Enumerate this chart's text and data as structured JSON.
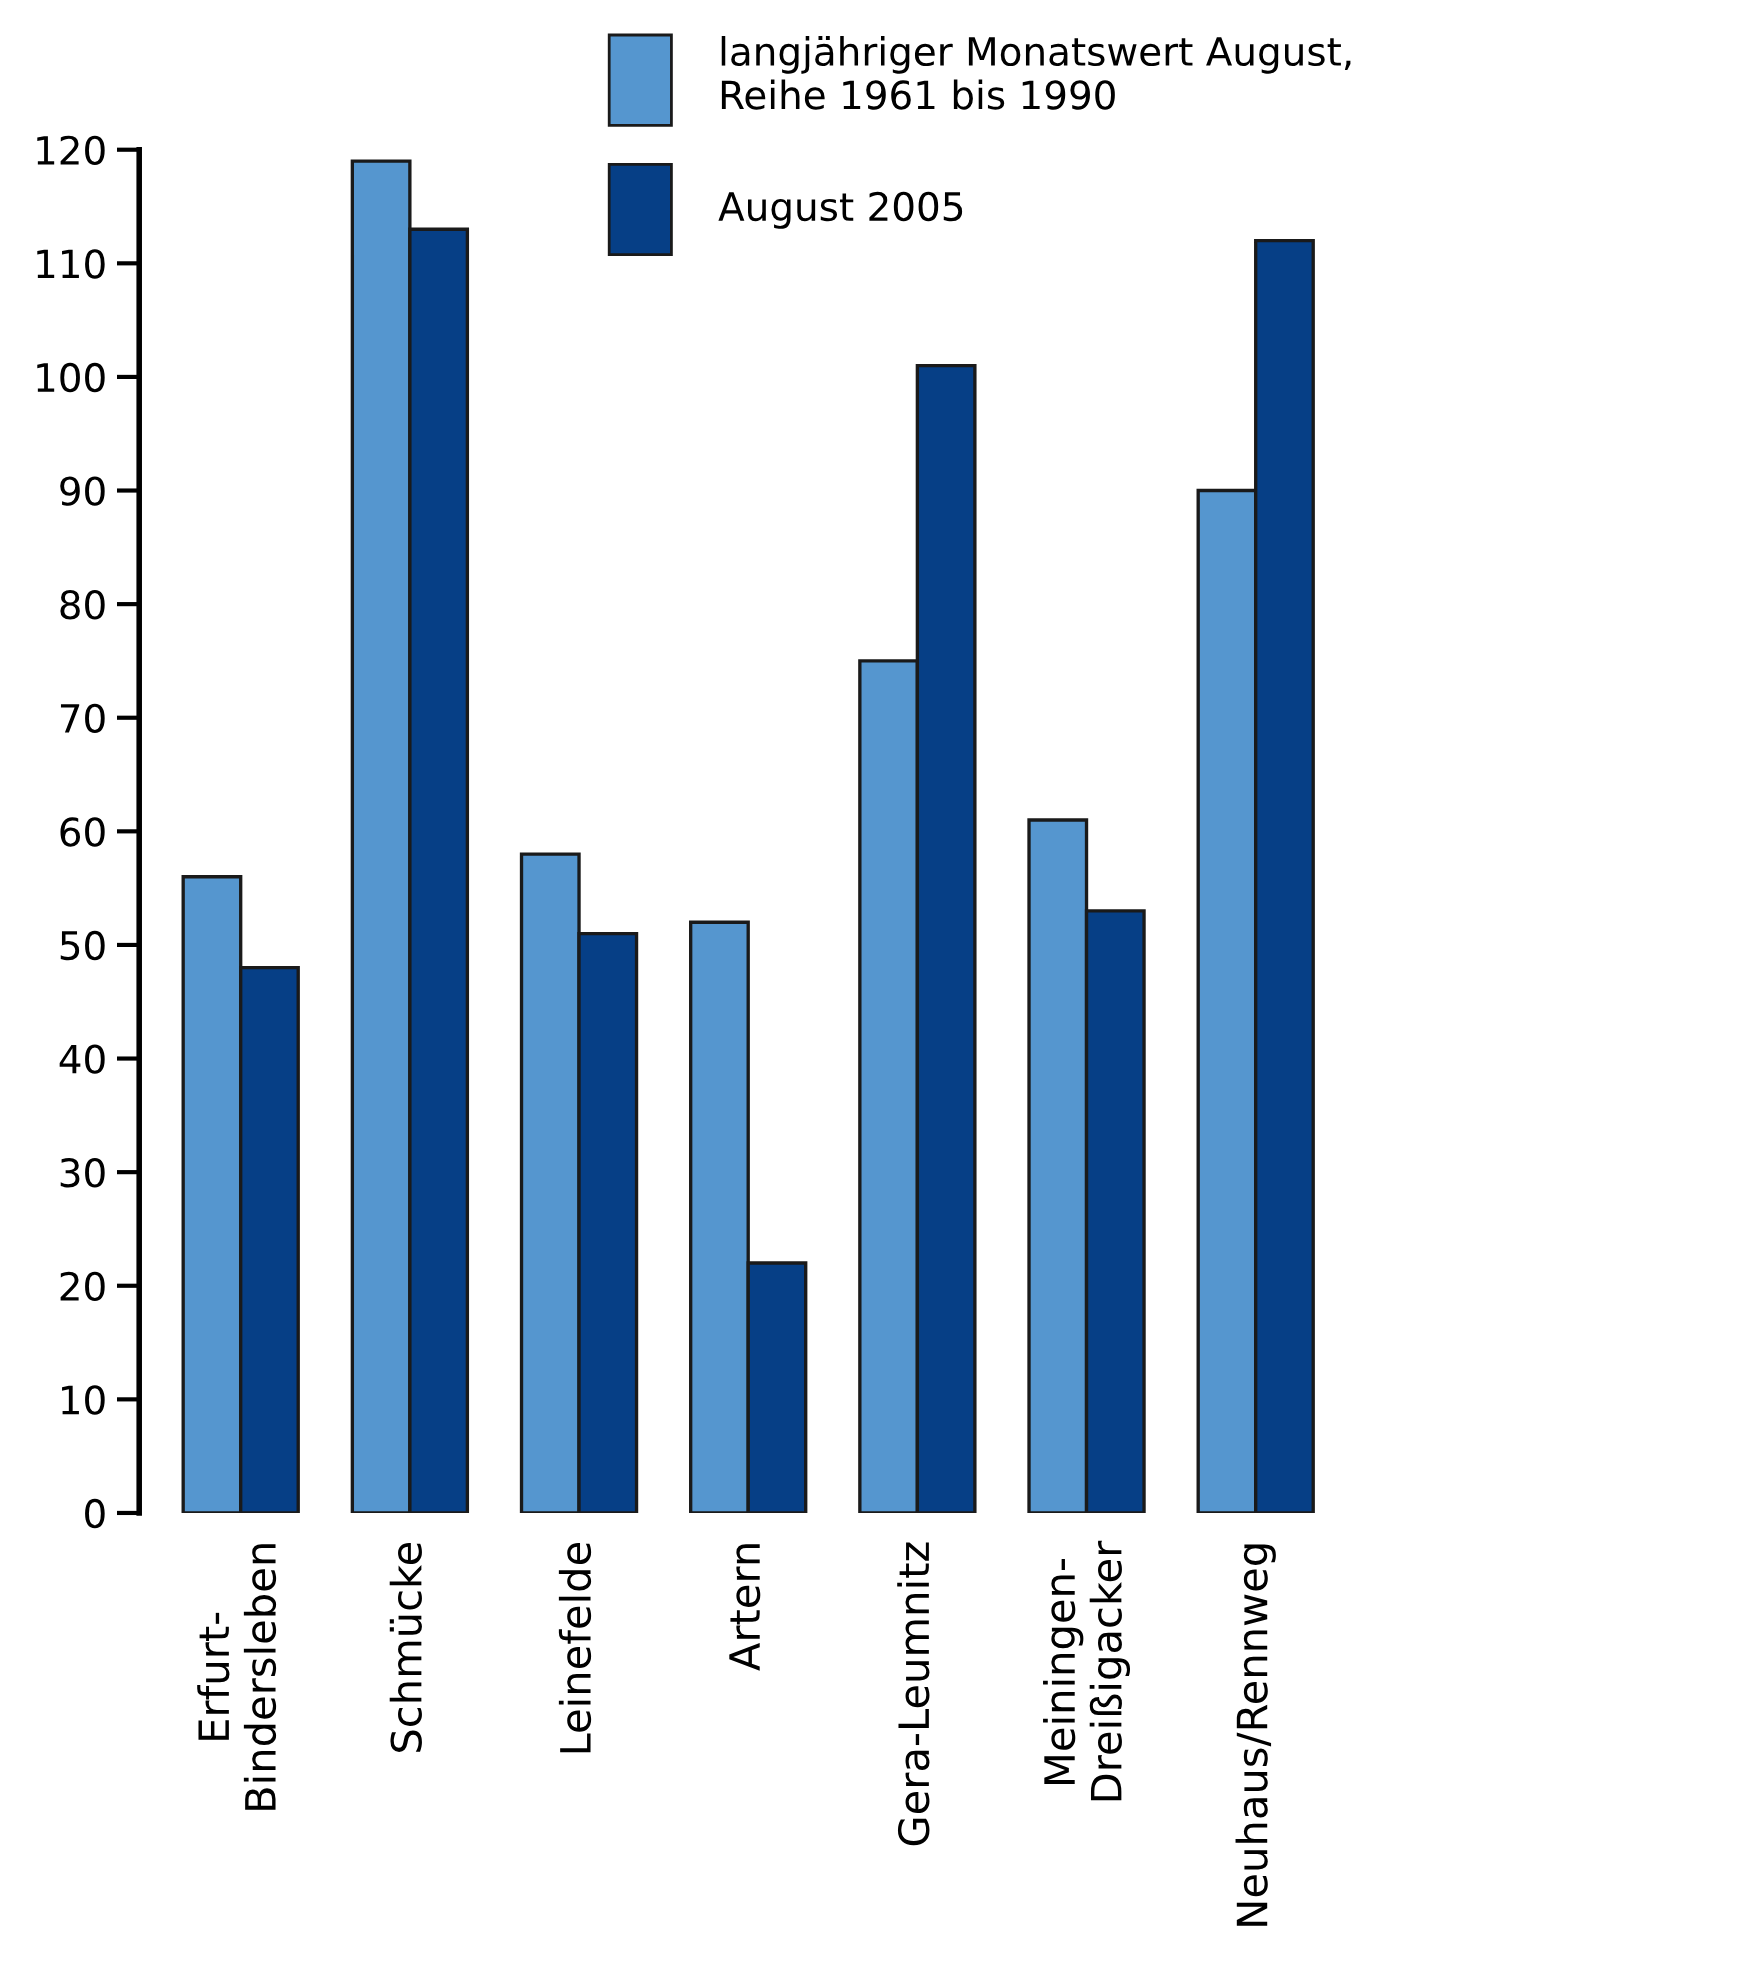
{
  "chart_data": {
    "type": "bar",
    "categories": [
      "Erfurt-\nBindersleben",
      "Schmücke",
      "Leinefelde",
      "Artern",
      "Gera-Leumnitz",
      "Meiningen-\nDreißigacker",
      "Neuhaus/Rennweg"
    ],
    "series": [
      {
        "name": "langjähriger Monatswert August,\nReihe 1961 bis 1990",
        "color": "#5596cf",
        "values": [
          56,
          119,
          58,
          52,
          75,
          61,
          90
        ]
      },
      {
        "name": "August 2005",
        "color": "#063f86",
        "values": [
          48,
          113,
          51,
          22,
          101,
          53,
          112
        ]
      }
    ],
    "ylim": [
      0,
      120
    ],
    "yticks": [
      0,
      10,
      20,
      30,
      40,
      50,
      60,
      70,
      80,
      90,
      100,
      110,
      120
    ],
    "grid": false,
    "legend": "top"
  }
}
